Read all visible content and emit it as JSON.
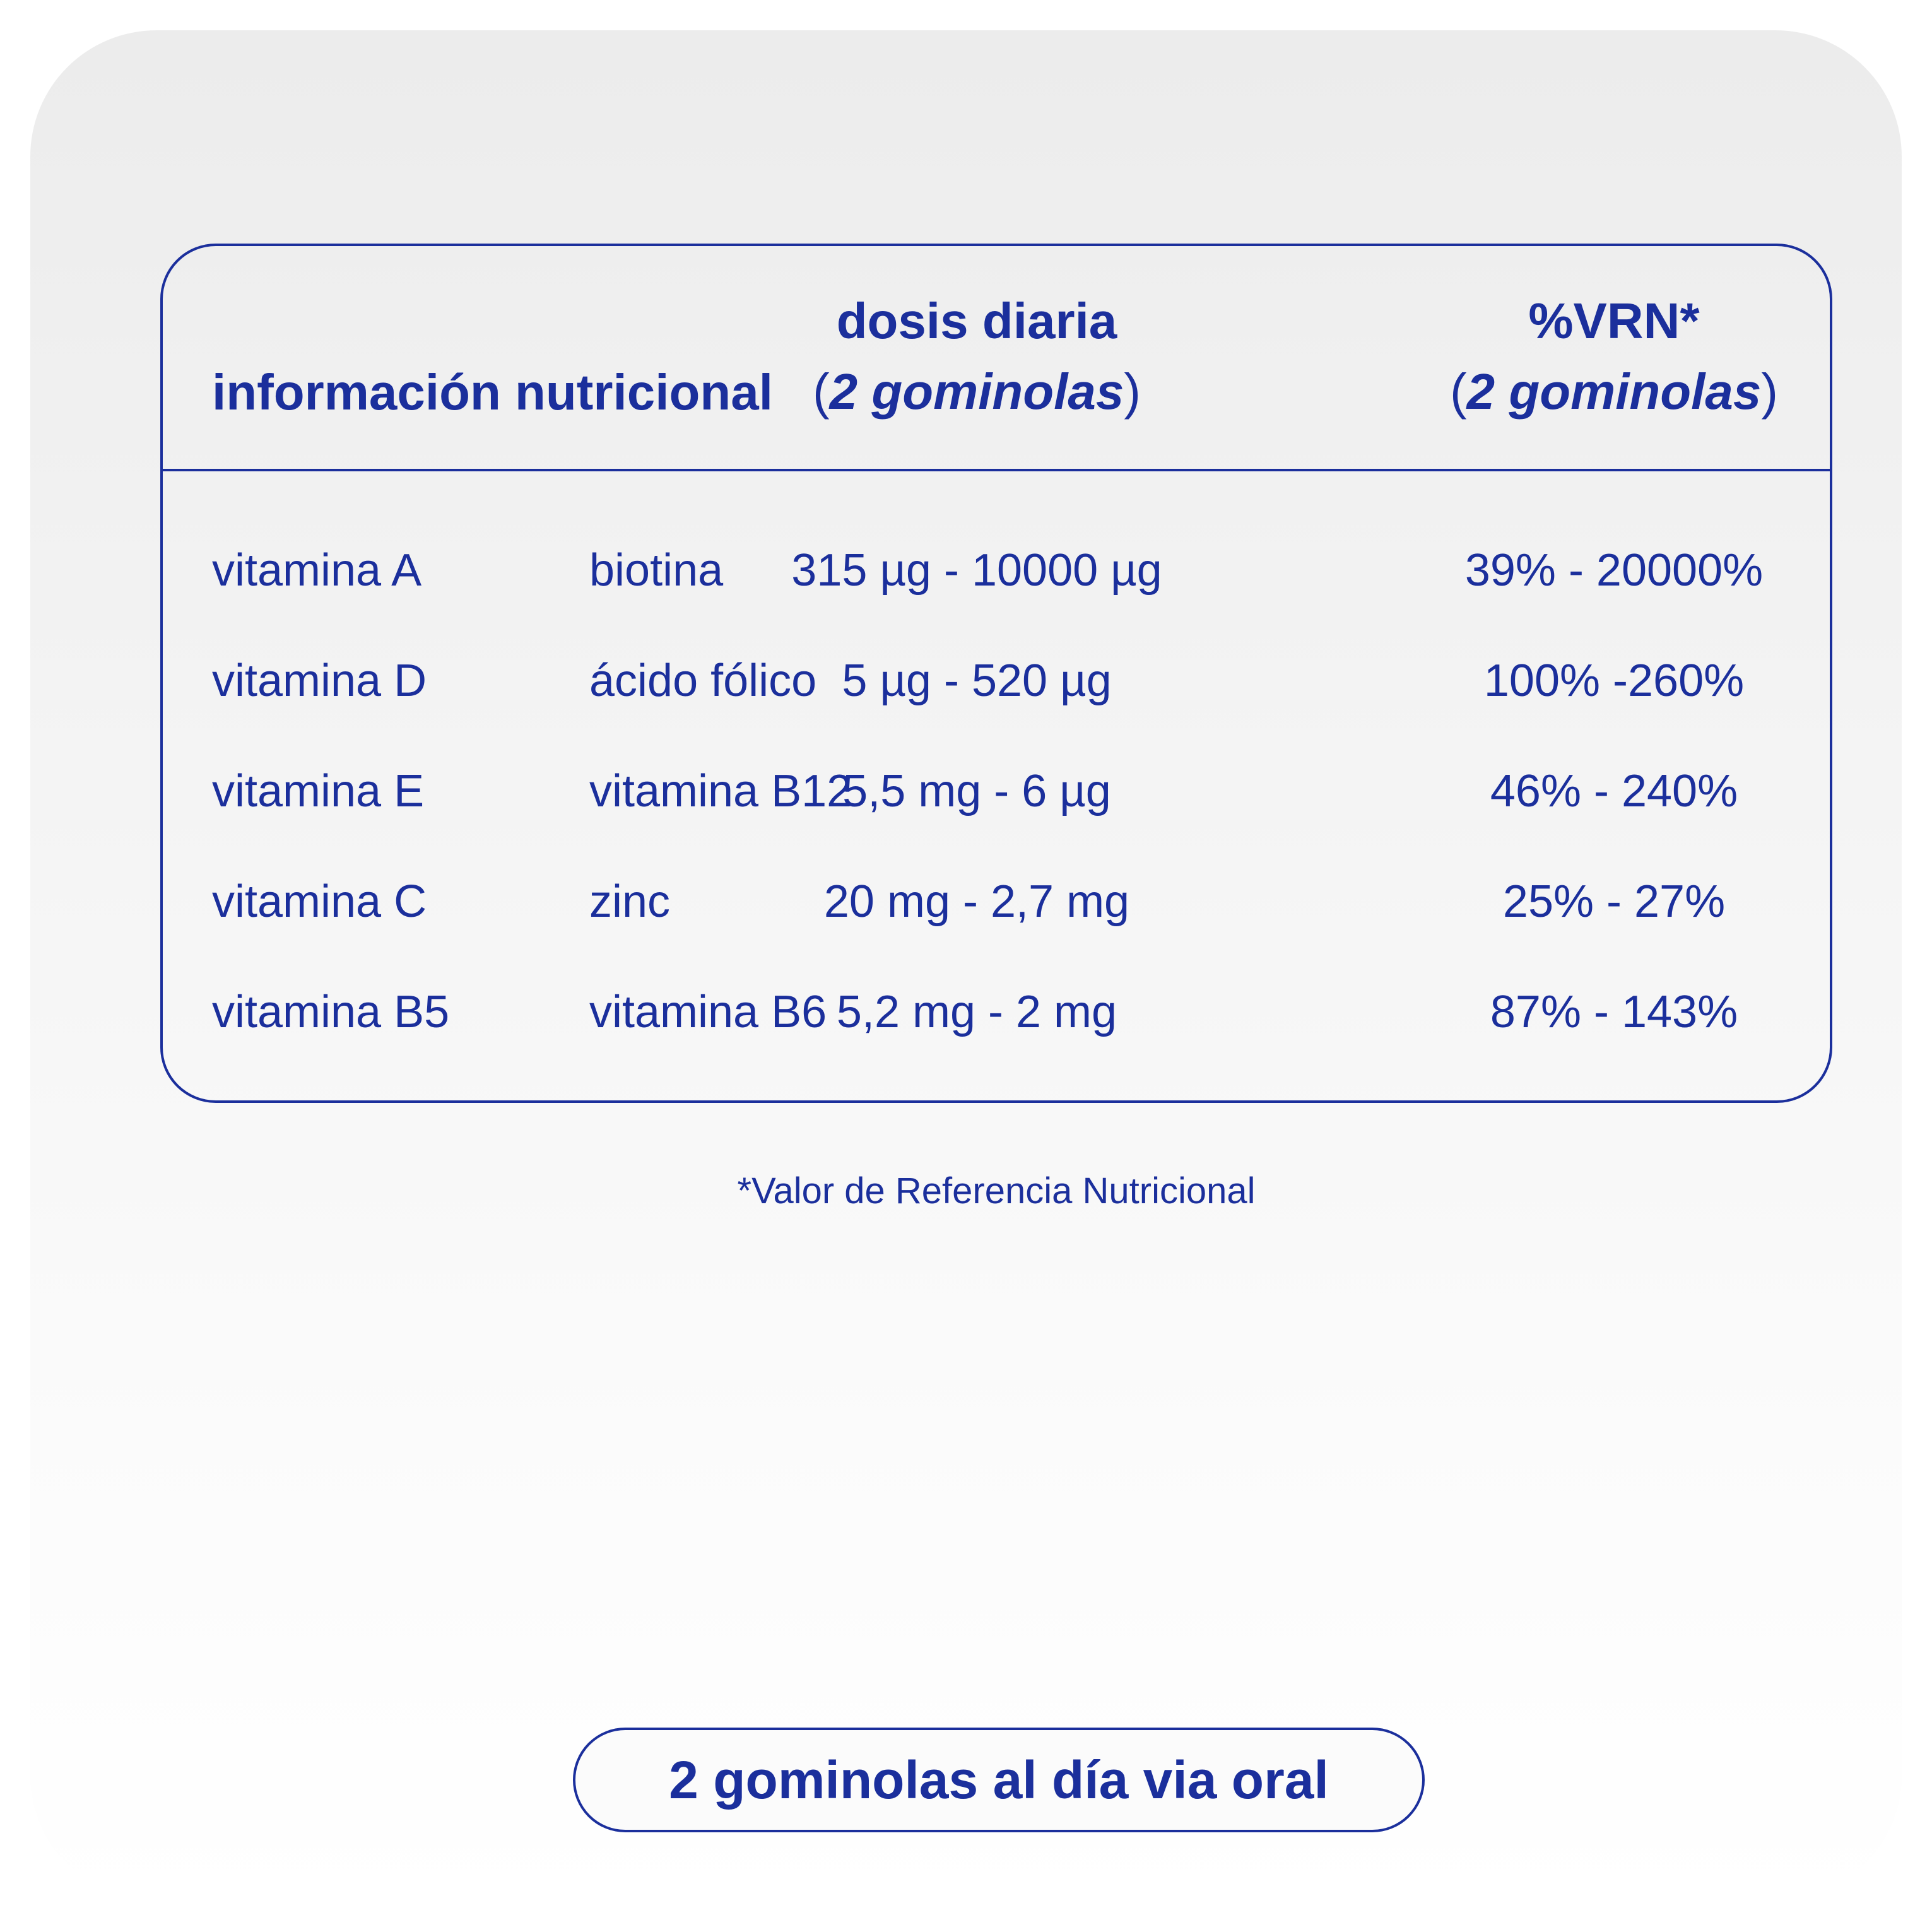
{
  "colors": {
    "accent": "#1b2f9c",
    "background_top": "#ececec",
    "background_bottom": "#ffffff"
  },
  "table": {
    "header": {
      "title": "información nutricional",
      "dose_line1": "dosis diaria",
      "dose_line2_open": "(",
      "dose_line2_italic": "2 gominolas",
      "dose_line2_close": ")",
      "vrn_line1": "%VRN*",
      "vrn_line2_open": "(",
      "vrn_line2_italic": "2 gominolas",
      "vrn_line2_close": ")"
    },
    "rows": [
      {
        "nutrient_a": "vitamina A",
        "nutrient_b": "biotina",
        "dose": "315 µg - 10000 µg",
        "vrn": "39% - 20000%"
      },
      {
        "nutrient_a": "vitamina D",
        "nutrient_b": "ácido fólico",
        "dose": "5 µg - 520 µg",
        "vrn": "100% -260%"
      },
      {
        "nutrient_a": "vitamina E",
        "nutrient_b": "vitamina B12",
        "dose": "5,5 mg - 6 µg",
        "vrn": "46% - 240%"
      },
      {
        "nutrient_a": "vitamina C",
        "nutrient_b": "zinc",
        "dose": "20 mg - 2,7 mg",
        "vrn": "25% - 27%"
      },
      {
        "nutrient_a": "vitamina B5",
        "nutrient_b": "vitamina B6",
        "dose": "5,2 mg - 2 mg",
        "vrn": "87% - 143%"
      }
    ]
  },
  "footnote": "*Valor de Referencia Nutricional",
  "dosage_badge": "2 gominolas al día via oral"
}
